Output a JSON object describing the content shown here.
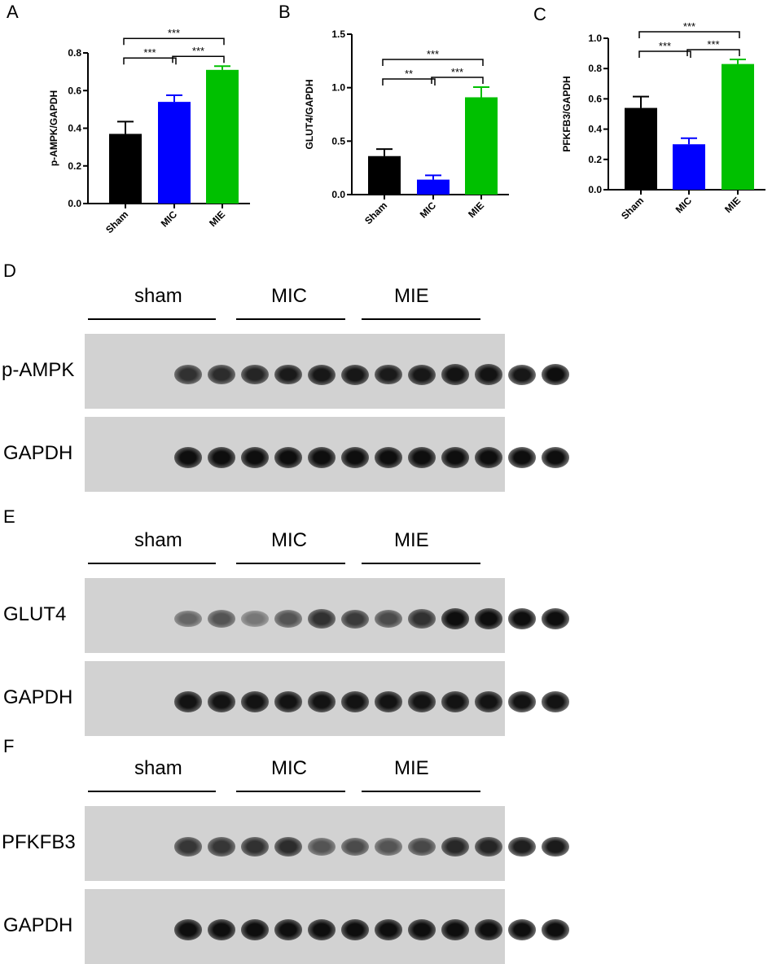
{
  "chart_data": [
    {
      "panel": "A",
      "type": "bar",
      "categories": [
        "Sham",
        "MIC",
        "MIE"
      ],
      "values": [
        0.37,
        0.54,
        0.71
      ],
      "errors": [
        0.065,
        0.035,
        0.02
      ],
      "colors": [
        "#000000",
        "#0000ff",
        "#00c000"
      ],
      "ylabel": "p-AMPK/GAPDH",
      "ylim": [
        0,
        0.8
      ],
      "yticks": [
        "0.0",
        "0.2",
        "0.4",
        "0.6",
        "0.8"
      ],
      "brackets": [
        {
          "from": 0,
          "to": 1,
          "label": "***",
          "level": 0
        },
        {
          "from": 1,
          "to": 2,
          "label": "***",
          "level": 0
        },
        {
          "from": 0,
          "to": 2,
          "label": "***",
          "level": 1
        }
      ]
    },
    {
      "panel": "B",
      "type": "bar",
      "categories": [
        "Sham",
        "MIC",
        "MIE"
      ],
      "values": [
        0.36,
        0.14,
        0.91
      ],
      "errors": [
        0.065,
        0.04,
        0.095
      ],
      "colors": [
        "#000000",
        "#0000ff",
        "#00c000"
      ],
      "ylabel": "GLUT4/GAPDH",
      "ylim": [
        0,
        1.5
      ],
      "yticks": [
        "0.0",
        "0.5",
        "1.0",
        "1.5"
      ],
      "brackets": [
        {
          "from": 0,
          "to": 1,
          "label": "**",
          "level": 0
        },
        {
          "from": 1,
          "to": 2,
          "label": "***",
          "level": 0
        },
        {
          "from": 0,
          "to": 2,
          "label": "***",
          "level": 1
        }
      ]
    },
    {
      "panel": "C",
      "type": "bar",
      "categories": [
        "Sham",
        "MIC",
        "MIE"
      ],
      "values": [
        0.54,
        0.3,
        0.83
      ],
      "errors": [
        0.075,
        0.04,
        0.03
      ],
      "colors": [
        "#000000",
        "#0000ff",
        "#00c000"
      ],
      "ylabel": "PFKFB3/GAPDH",
      "ylim": [
        0,
        1.0
      ],
      "yticks": [
        "0.0",
        "0.2",
        "0.4",
        "0.6",
        "0.8",
        "1.0"
      ],
      "brackets": [
        {
          "from": 0,
          "to": 1,
          "label": "***",
          "level": 0
        },
        {
          "from": 1,
          "to": 2,
          "label": "***",
          "level": 0
        },
        {
          "from": 0,
          "to": 2,
          "label": "***",
          "level": 1
        }
      ]
    }
  ],
  "blots": [
    {
      "panel": "D",
      "groups": [
        "sham",
        "MIC",
        "MIE"
      ],
      "rows": [
        {
          "label": "p-AMPK",
          "intensity": [
            0.75,
            0.78,
            0.82,
            0.88,
            0.9,
            0.9,
            0.88,
            0.9,
            0.92,
            0.92,
            0.9,
            0.95
          ]
        },
        {
          "label": "GAPDH",
          "intensity": [
            0.95,
            0.95,
            0.95,
            0.95,
            0.95,
            0.95,
            0.95,
            0.95,
            0.95,
            0.95,
            0.95,
            0.95
          ]
        }
      ]
    },
    {
      "panel": "E",
      "groups": [
        "sham",
        "MIC",
        "MIE"
      ],
      "rows": [
        {
          "label": "GLUT4",
          "intensity": [
            0.45,
            0.55,
            0.35,
            0.55,
            0.75,
            0.7,
            0.6,
            0.75,
            0.95,
            0.95,
            0.95,
            0.95
          ]
        },
        {
          "label": "GAPDH",
          "intensity": [
            0.92,
            0.92,
            0.92,
            0.92,
            0.92,
            0.92,
            0.92,
            0.92,
            0.92,
            0.92,
            0.92,
            0.92
          ]
        }
      ]
    },
    {
      "panel": "F",
      "groups": [
        "sham",
        "MIC",
        "MIE"
      ],
      "rows": [
        {
          "label": "PFKFB3",
          "intensity": [
            0.72,
            0.72,
            0.75,
            0.78,
            0.55,
            0.6,
            0.55,
            0.62,
            0.8,
            0.82,
            0.85,
            0.88
          ]
        },
        {
          "label": "GAPDH",
          "intensity": [
            0.95,
            0.95,
            0.95,
            0.95,
            0.95,
            0.95,
            0.95,
            0.95,
            0.95,
            0.95,
            0.95,
            0.95
          ]
        }
      ]
    }
  ]
}
